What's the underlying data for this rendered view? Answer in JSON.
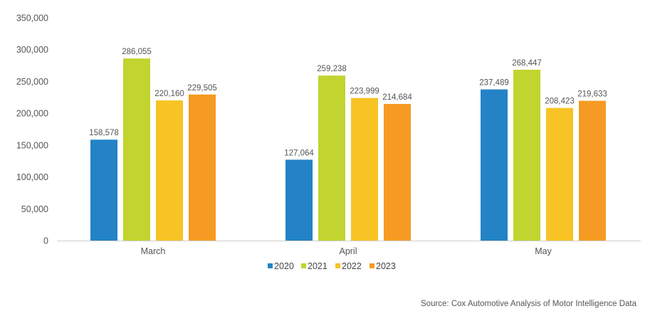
{
  "chart_data": {
    "type": "bar",
    "categories": [
      "March",
      "April",
      "May"
    ],
    "series": [
      {
        "name": "2020",
        "color": "#2383c6",
        "values": [
          158578,
          127064,
          237489
        ]
      },
      {
        "name": "2021",
        "color": "#c1d42f",
        "values": [
          286055,
          259238,
          268447
        ]
      },
      {
        "name": "2022",
        "color": "#f8c325",
        "values": [
          220160,
          223999,
          208423
        ]
      },
      {
        "name": "2023",
        "color": "#f59b23",
        "values": [
          229505,
          214684,
          219633
        ]
      }
    ],
    "data_labels": [
      [
        "158,578",
        "127,064",
        "237,489"
      ],
      [
        "286,055",
        "259,238",
        "268,447"
      ],
      [
        "220,160",
        "223,999",
        "208,423"
      ],
      [
        "229,505",
        "214,684",
        "219,633"
      ]
    ],
    "yticks": [
      0,
      50000,
      100000,
      150000,
      200000,
      250000,
      300000,
      350000
    ],
    "ytick_labels": [
      "0",
      "50,000",
      "100,000",
      "150,000",
      "200,000",
      "250,000",
      "300,000",
      "350,000"
    ],
    "ylim": [
      0,
      350000
    ],
    "grid": false,
    "legend_position": "bottom"
  },
  "source_note": "Source: Cox Automotive Analysis of Motor Intelligence Data"
}
